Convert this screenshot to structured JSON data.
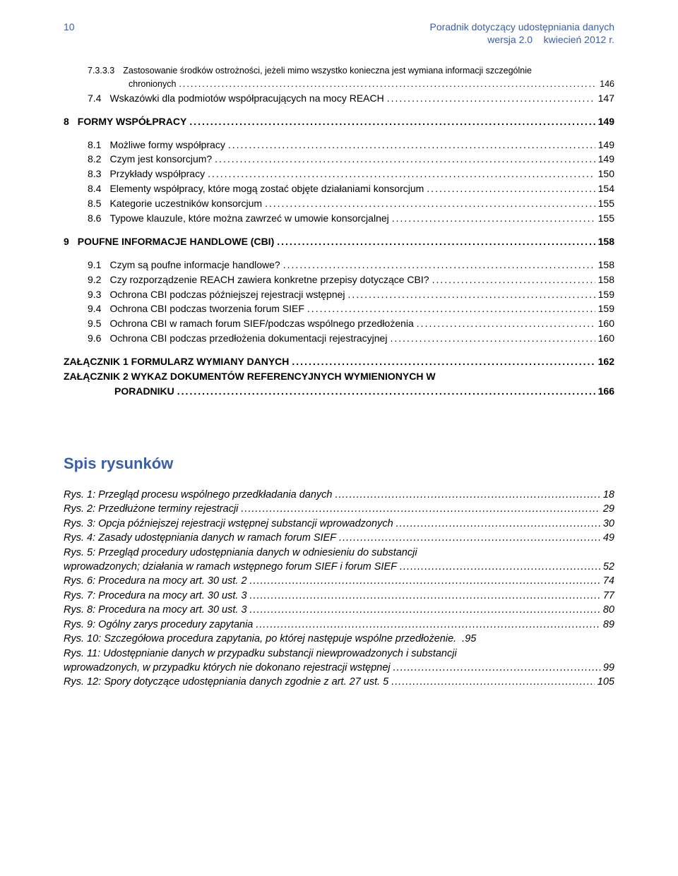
{
  "header": {
    "page_number": "10",
    "title": "Poradnik dotyczący udostępniania danych",
    "subtitle_left": "wersja 2.0",
    "subtitle_right": "kwiecień 2012 r."
  },
  "toc": [
    {
      "num": "7.3.3.3",
      "label": "Zastosowanie środków ostrożności, jeżeli mimo wszystko konieczna jest wymiana informacji szczególnie chronionych",
      "page": "146",
      "indent": 1,
      "small": true,
      "wrap": true
    },
    {
      "num": "7.4",
      "label": "Wskazówki dla podmiotów współpracujących na mocy REACH",
      "page": "147",
      "indent": 1
    },
    {
      "num": "8",
      "label": "FORMY WSPÓŁPRACY",
      "page": "149",
      "indent": 0,
      "bold": true,
      "gap": true
    },
    {
      "num": "8.1",
      "label": "Możliwe formy współpracy",
      "page": "149",
      "indent": 1,
      "gap": true
    },
    {
      "num": "8.2",
      "label": "Czym jest konsorcjum?",
      "page": "149",
      "indent": 1
    },
    {
      "num": "8.3",
      "label": "Przykłady współpracy",
      "page": "150",
      "indent": 1
    },
    {
      "num": "8.4",
      "label": "Elementy współpracy, które mogą zostać objęte działaniami konsorcjum",
      "page": "154",
      "indent": 1
    },
    {
      "num": "8.5",
      "label": "Kategorie uczestników konsorcjum",
      "page": "155",
      "indent": 1
    },
    {
      "num": "8.6",
      "label": "Typowe klauzule, które można zawrzeć w umowie konsorcjalnej",
      "page": "155",
      "indent": 1
    },
    {
      "num": "9",
      "label": "POUFNE INFORMACJE HANDLOWE (CBI)",
      "page": "158",
      "indent": 0,
      "bold": true,
      "gap": true
    },
    {
      "num": "9.1",
      "label": "Czym są poufne informacje handlowe?",
      "page": "158",
      "indent": 1,
      "gap": true
    },
    {
      "num": "9.2",
      "label": "Czy rozporządzenie REACH zawiera konkretne przepisy dotyczące CBI?",
      "page": "158",
      "indent": 1
    },
    {
      "num": "9.3",
      "label": "Ochrona CBI podczas późniejszej rejestracji wstępnej",
      "page": "159",
      "indent": 1
    },
    {
      "num": "9.4",
      "label": "Ochrona CBI podczas tworzenia forum SIEF",
      "page": "159",
      "indent": 1
    },
    {
      "num": "9.5",
      "label": "Ochrona CBI w ramach forum SIEF/podczas wspólnego przedłożenia",
      "page": "160",
      "indent": 1
    },
    {
      "num": "9.6",
      "label": "Ochrona CBI podczas przedłożenia dokumentacji rejestracyjnej",
      "page": "160",
      "indent": 1
    },
    {
      "num": "",
      "label": "ZAŁĄCZNIK 1 FORMULARZ WYMIANY DANYCH",
      "page": "162",
      "indent": 0,
      "bold": true,
      "gap": true
    },
    {
      "num": "",
      "label": "ZAŁĄCZNIK 2 WYKAZ DOKUMENTÓW REFERENCYJNYCH WYMIENIONYCH W PORADNIKU",
      "page": "166",
      "indent": 0,
      "bold": true,
      "wrap2": true
    }
  ],
  "figures_heading": "Spis rysunków",
  "figures": [
    {
      "label": "Rys. 1: Przegląd procesu wspólnego przedkładania danych",
      "page": "18"
    },
    {
      "label": "Rys. 2: Przedłużone terminy rejestracji",
      "page": "29"
    },
    {
      "label": "Rys. 3: Opcja późniejszej rejestracji wstępnej substancji wprowadzonych",
      "page": "30"
    },
    {
      "label": "Rys. 4: Zasady udostępniania danych w ramach forum SIEF",
      "page": "49"
    },
    {
      "label1": "Rys. 5: Przegląd procedury udostępniania danych w odniesieniu do substancji",
      "label2": "wprowadzonych; działania w ramach wstępnego forum SIEF i forum SIEF",
      "page": "52",
      "multi": true
    },
    {
      "label": "Rys. 6: Procedura na mocy art. 30 ust. 2",
      "page": "74"
    },
    {
      "label": "Rys. 7: Procedura na mocy art. 30 ust. 3",
      "page": "77"
    },
    {
      "label": "Rys. 8: Procedura na mocy art. 30 ust. 3",
      "page": "80"
    },
    {
      "label": "Rys. 9: Ogólny zarys procedury zapytania",
      "page": "89"
    },
    {
      "label": "Rys. 10: Szczegółowa procedura zapytania, po której następuje wspólne przedłożenie.",
      "page": ".95",
      "tight": true
    },
    {
      "label1": "Rys. 11: Udostępnianie danych w przypadku substancji niewprowadzonych i substancji",
      "label2": "wprowadzonych, w przypadku których nie dokonano rejestracji wstępnej",
      "page": "99",
      "multi": true
    },
    {
      "label": "Rys. 12: Spory dotyczące udostępniania danych zgodnie z art. 27 ust. 5",
      "page": "105"
    }
  ]
}
